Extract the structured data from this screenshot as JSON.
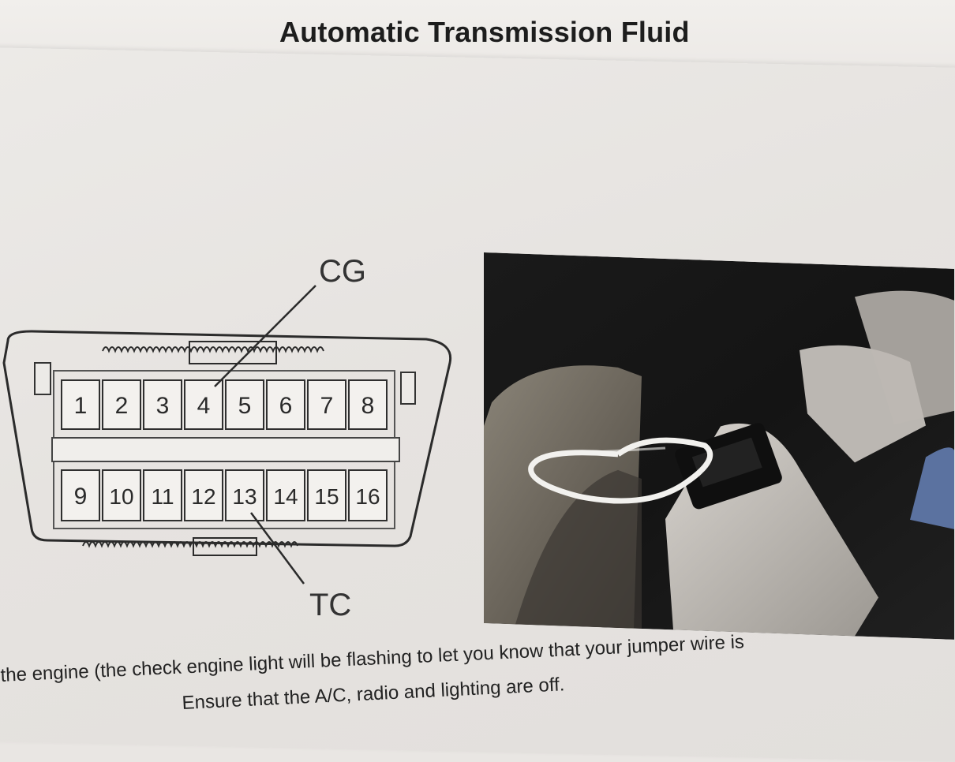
{
  "document": {
    "title": "Automatic Transmission Fluid",
    "connector": {
      "top_label": "CG",
      "bottom_label": "TC",
      "top_row_pins": [
        "1",
        "2",
        "3",
        "4",
        "5",
        "6",
        "7",
        "8"
      ],
      "bottom_row_pins": [
        "9",
        "10",
        "11",
        "12",
        "13",
        "14",
        "15",
        "16"
      ]
    },
    "body_lines": [
      "the engine (the check engine light will be flashing to let you know that your jumper wire is",
      "Ensure that the A/C, radio and lighting are off."
    ]
  }
}
